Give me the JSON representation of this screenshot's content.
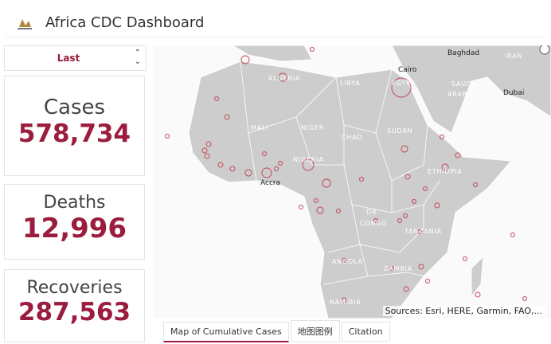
{
  "header": {
    "title": "Africa CDC Dashboard"
  },
  "dropdown": {
    "value": "Last"
  },
  "cards": [
    {
      "label": "Cases",
      "value": "578,734"
    },
    {
      "label": "Deaths",
      "value": "12,996"
    },
    {
      "label": "Recoveries",
      "value": "287,563"
    }
  ],
  "map": {
    "labels": [
      "Baghdad",
      "IRAN",
      "Cairo",
      "EGYPT",
      "SAUDI",
      "ARABIA",
      "Dubai",
      "ALGERIA",
      "LIBYA",
      "MALI",
      "NIGER",
      "CHAD",
      "SUDAN",
      "NIGERIA",
      "ETHIOPIA",
      "Accra",
      "DR",
      "CONGO",
      "TANZANIA",
      "ANGOLA",
      "ZAMBIA",
      "NAMIBIA"
    ],
    "attribution": "Sources: Esri, HERE, Garmin, FAO,..."
  },
  "tabs": [
    "Map of Cumulative Cases",
    "地图图例",
    "Citation"
  ]
}
